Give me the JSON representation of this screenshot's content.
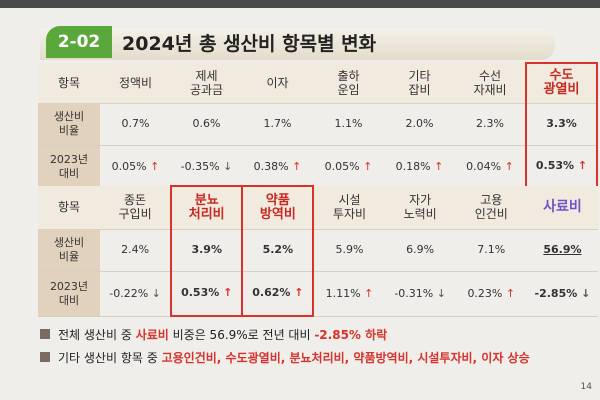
{
  "header": {
    "badge": "2-02",
    "title": "2024년 총 생산비 항목별 변화"
  },
  "tables": [
    {
      "headers": [
        "항목",
        "정액비",
        "제세\n공과금",
        "이자",
        "출하\n운임",
        "기타\n잡비",
        "수선\n자재비",
        "수도\n광열비"
      ],
      "rows": [
        {
          "label": "생산비\n비율",
          "cells": [
            {
              "value": "0.7%"
            },
            {
              "value": "0.6%"
            },
            {
              "value": "1.7%"
            },
            {
              "value": "1.1%"
            },
            {
              "value": "2.0%"
            },
            {
              "value": "2.3%"
            },
            {
              "value": "3.3%"
            }
          ]
        },
        {
          "label": "2023년\n대비",
          "cells": [
            {
              "value": "0.05%",
              "arrow": "↑"
            },
            {
              "value": "-0.35%",
              "arrow": "↓"
            },
            {
              "value": "0.38%",
              "arrow": "↑"
            },
            {
              "value": "0.05%",
              "arrow": "↑"
            },
            {
              "value": "0.18%",
              "arrow": "↑"
            },
            {
              "value": "0.04%",
              "arrow": "↑"
            },
            {
              "value": "0.53%",
              "arrow": "↑"
            }
          ]
        }
      ]
    },
    {
      "headers": [
        "항목",
        "종돈\n구입비",
        "분뇨\n처리비",
        "약품\n방역비",
        "시설\n투자비",
        "자가\n노력비",
        "고용\n인건비",
        "사료비"
      ],
      "rows": [
        {
          "label": "생산비\n비율",
          "cells": [
            {
              "value": "2.4%"
            },
            {
              "value": "3.9%"
            },
            {
              "value": "5.2%"
            },
            {
              "value": "5.9%"
            },
            {
              "value": "6.9%"
            },
            {
              "value": "7.1%"
            },
            {
              "value": "56.9%"
            }
          ]
        },
        {
          "label": "2023년\n대비",
          "cells": [
            {
              "value": "-0.22%",
              "arrow": "↓"
            },
            {
              "value": "0.53%",
              "arrow": "↑"
            },
            {
              "value": "0.62%",
              "arrow": "↑"
            },
            {
              "value": "1.11%",
              "arrow": "↑"
            },
            {
              "value": "-0.31%",
              "arrow": "↓"
            },
            {
              "value": "0.23%",
              "arrow": "↑"
            },
            {
              "value": "-2.85%",
              "arrow": "↓"
            }
          ]
        }
      ]
    }
  ],
  "notes": [
    [
      "전체 생산비 중 ",
      "사료비",
      " 비중은 56.9%로 전년 대비 ",
      "-2.85% 하락"
    ],
    [
      "기타 생산비 항목 중 ",
      "고용인건비, 수도광열비, 분뇨처리비, 약품방역비, 시설투자비, 이자 상승"
    ]
  ],
  "page_number": "14"
}
